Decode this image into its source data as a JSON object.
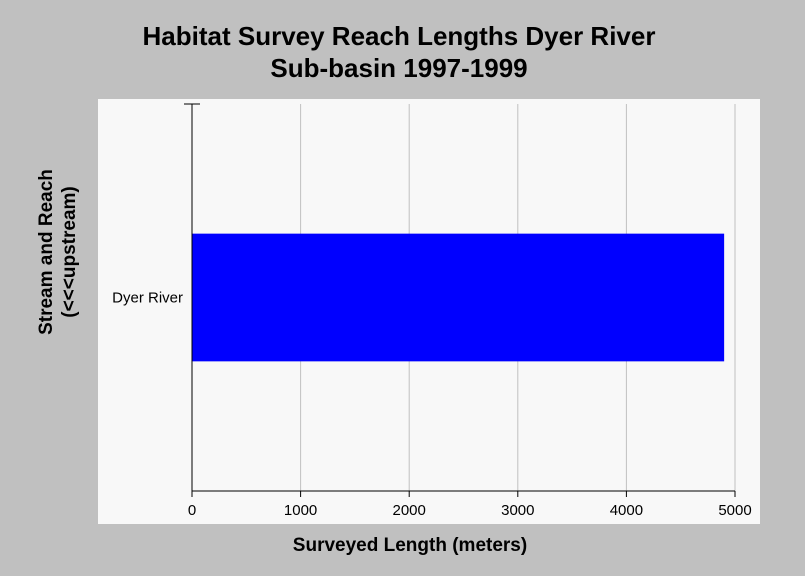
{
  "chart_data": {
    "type": "bar",
    "orientation": "horizontal",
    "title_lines": [
      "Habitat Survey Reach Lengths Dyer River",
      "Sub-basin 1997-1999"
    ],
    "xlabel": "Surveyed Length (meters)",
    "ylabel_lines": [
      "Stream and Reach",
      "(<<<upstream)"
    ],
    "categories": [
      "Dyer River"
    ],
    "values": [
      4900
    ],
    "xlim": [
      0,
      5000
    ],
    "xticks": [
      0,
      1000,
      2000,
      3000,
      4000,
      5000
    ],
    "grid": "vertical",
    "bar_color": "#0000ff",
    "gridline_color": "#c0c0c0",
    "plot_background": "#f8f8f8",
    "page_background": "#c0c0c0"
  }
}
